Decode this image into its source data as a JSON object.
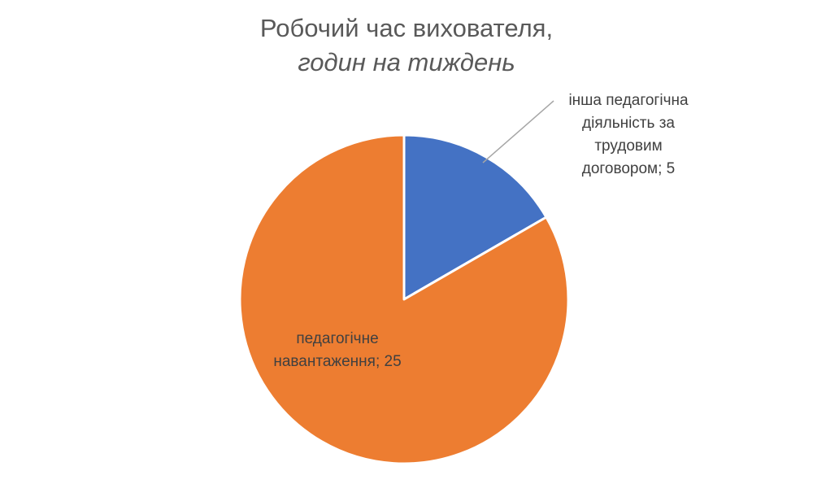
{
  "chart_data": {
    "type": "pie",
    "title": {
      "line1": "Робочий час вихователя,",
      "line2": "годин на тиждень"
    },
    "slices": [
      {
        "label": "інша педагогічна діяльність за трудовим договором",
        "value": 5,
        "color": "#4472C4",
        "label_lines": [
          "інша педагогічна",
          "діяльність за",
          "трудовим",
          "договором; 5"
        ]
      },
      {
        "label": "педагогічне навантаження",
        "value": 25,
        "color": "#ED7D31",
        "label_lines": [
          "педагогічне",
          "навантаження; 25"
        ]
      }
    ],
    "start_angle": "12 o'clock",
    "direction": "clockwise",
    "legend": "none",
    "leader_line_color": "#A6A6A6"
  }
}
